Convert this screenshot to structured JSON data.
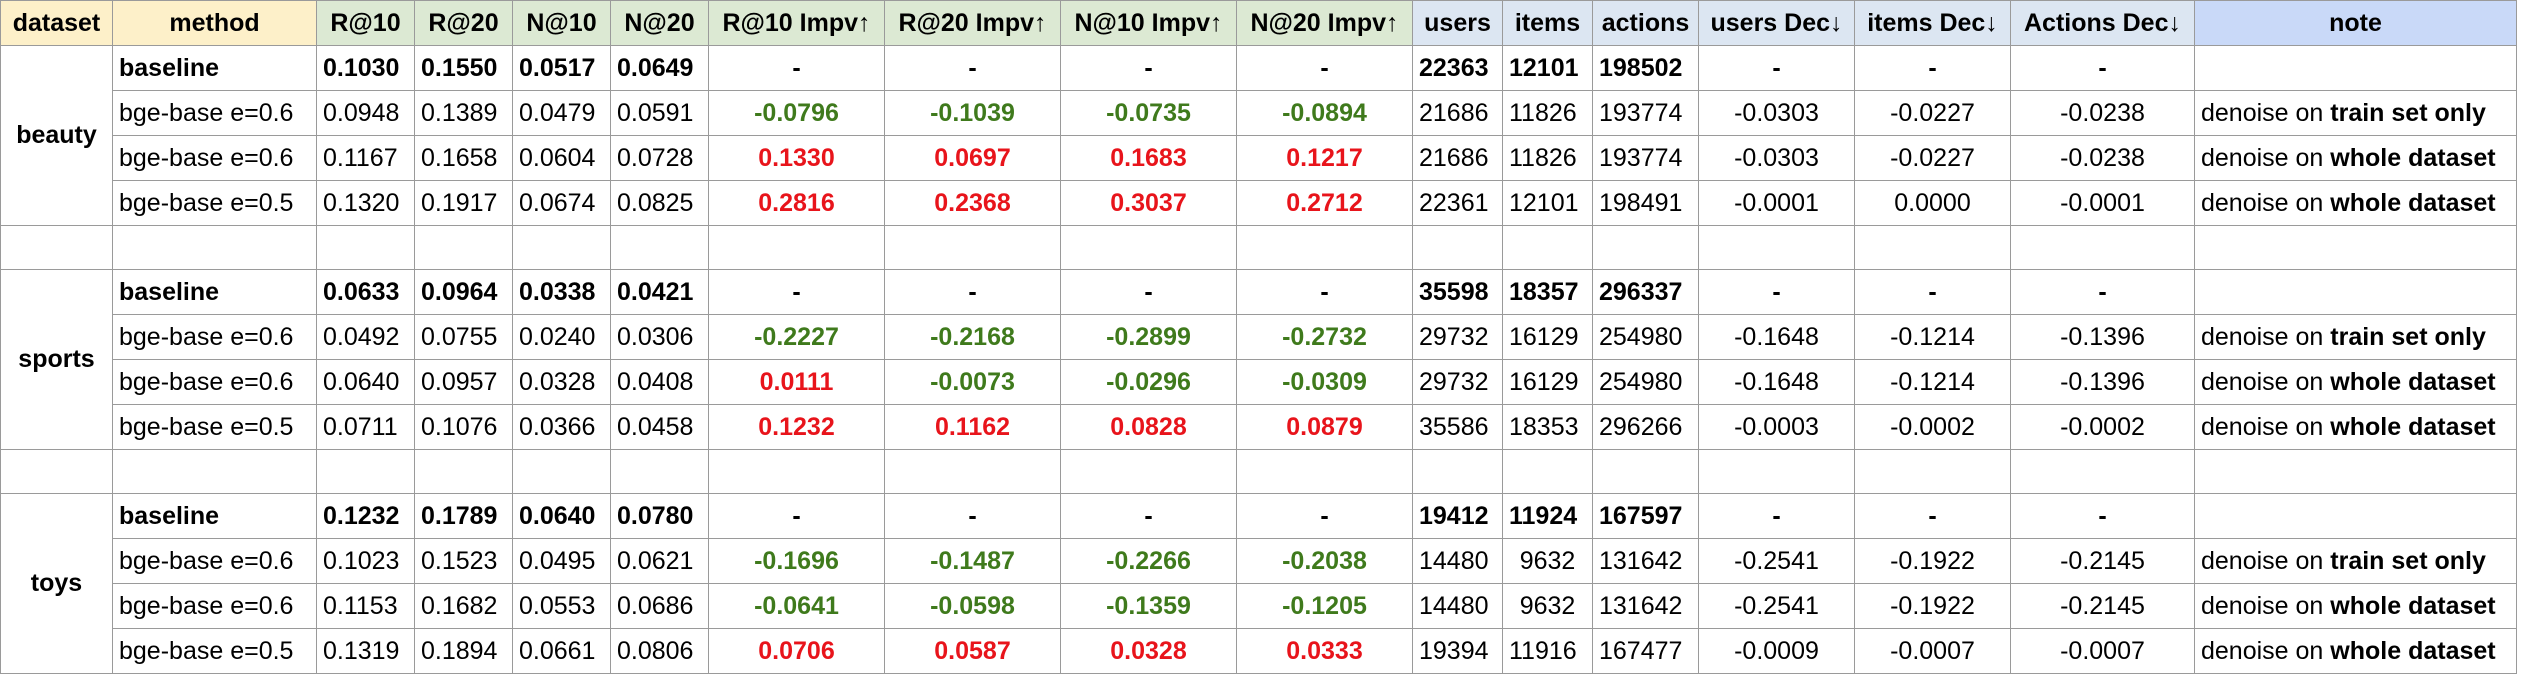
{
  "columns": [
    "dataset",
    "method",
    "R@10",
    "R@20",
    "N@10",
    "N@20",
    "R@10 Impv↑",
    "R@20 Impv↑",
    "N@10 Impv↑",
    "N@20 Impv↑",
    "users",
    "items",
    "actions",
    "users Dec↓",
    "items Dec↓",
    "Actions Dec↓",
    "note"
  ],
  "groups": [
    {
      "name": "beauty",
      "rows": [
        {
          "method": "baseline",
          "r10": "0.1030",
          "r20": "0.1550",
          "n10": "0.0517",
          "n20": "0.0649",
          "r10i": "-",
          "r20i": "-",
          "n10i": "-",
          "n20i": "-",
          "users": "22363",
          "items": "12101",
          "actions": "198502",
          "ud": "-",
          "id": "-",
          "ad": "-",
          "note_pre": "",
          "note_bold": ""
        },
        {
          "method": "bge-base e=0.6",
          "r10": "0.0948",
          "r20": "0.1389",
          "n10": "0.0479",
          "n20": "0.0591",
          "r10i": "-0.0796",
          "r20i": "-0.1039",
          "n10i": "-0.0735",
          "n20i": "-0.0894",
          "users": "21686",
          "items": "11826",
          "actions": "193774",
          "ud": "-0.0303",
          "id": "-0.0227",
          "ad": "-0.0238",
          "note_pre": "denoise on ",
          "note_bold": "train set only"
        },
        {
          "method": "bge-base e=0.6",
          "r10": "0.1167",
          "r20": "0.1658",
          "n10": "0.0604",
          "n20": "0.0728",
          "r10i": "0.1330",
          "r20i": "0.0697",
          "n10i": "0.1683",
          "n20i": "0.1217",
          "users": "21686",
          "items": "11826",
          "actions": "193774",
          "ud": "-0.0303",
          "id": "-0.0227",
          "ad": "-0.0238",
          "note_pre": "denoise on ",
          "note_bold": "whole dataset"
        },
        {
          "method": "bge-base e=0.5",
          "r10": "0.1320",
          "r20": "0.1917",
          "n10": "0.0674",
          "n20": "0.0825",
          "r10i": "0.2816",
          "r20i": "0.2368",
          "n10i": "0.3037",
          "n20i": "0.2712",
          "users": "22361",
          "items": "12101",
          "actions": "198491",
          "ud": "-0.0001",
          "id": "0.0000",
          "ad": "-0.0001",
          "note_pre": "denoise on ",
          "note_bold": "whole dataset"
        }
      ]
    },
    {
      "name": "sports",
      "rows": [
        {
          "method": "baseline",
          "r10": "0.0633",
          "r20": "0.0964",
          "n10": "0.0338",
          "n20": "0.0421",
          "r10i": "-",
          "r20i": "-",
          "n10i": "-",
          "n20i": "-",
          "users": "35598",
          "items": "18357",
          "actions": "296337",
          "ud": "-",
          "id": "-",
          "ad": "-",
          "note_pre": "",
          "note_bold": ""
        },
        {
          "method": "bge-base e=0.6",
          "r10": "0.0492",
          "r20": "0.0755",
          "n10": "0.0240",
          "n20": "0.0306",
          "r10i": "-0.2227",
          "r20i": "-0.2168",
          "n10i": "-0.2899",
          "n20i": "-0.2732",
          "users": "29732",
          "items": "16129",
          "actions": "254980",
          "ud": "-0.1648",
          "id": "-0.1214",
          "ad": "-0.1396",
          "note_pre": "denoise on ",
          "note_bold": "train set only"
        },
        {
          "method": "bge-base e=0.6",
          "r10": "0.0640",
          "r20": "0.0957",
          "n10": "0.0328",
          "n20": "0.0408",
          "r10i": "0.0111",
          "r20i": "-0.0073",
          "n10i": "-0.0296",
          "n20i": "-0.0309",
          "users": "29732",
          "items": "16129",
          "actions": "254980",
          "ud": "-0.1648",
          "id": "-0.1214",
          "ad": "-0.1396",
          "note_pre": "denoise on ",
          "note_bold": "whole dataset"
        },
        {
          "method": "bge-base e=0.5",
          "r10": "0.0711",
          "r20": "0.1076",
          "n10": "0.0366",
          "n20": "0.0458",
          "r10i": "0.1232",
          "r20i": "0.1162",
          "n10i": "0.0828",
          "n20i": "0.0879",
          "users": "35586",
          "items": "18353",
          "actions": "296266",
          "ud": "-0.0003",
          "id": "-0.0002",
          "ad": "-0.0002",
          "note_pre": "denoise on ",
          "note_bold": "whole dataset"
        }
      ]
    },
    {
      "name": "toys",
      "rows": [
        {
          "method": "baseline",
          "r10": "0.1232",
          "r20": "0.1789",
          "n10": "0.0640",
          "n20": "0.0780",
          "r10i": "-",
          "r20i": "-",
          "n10i": "-",
          "n20i": "-",
          "users": "19412",
          "items": "11924",
          "actions": "167597",
          "ud": "-",
          "id": "-",
          "ad": "-",
          "note_pre": "",
          "note_bold": ""
        },
        {
          "method": "bge-base e=0.6",
          "r10": "0.1023",
          "r20": "0.1523",
          "n10": "0.0495",
          "n20": "0.0621",
          "r10i": "-0.1696",
          "r20i": "-0.1487",
          "n10i": "-0.2266",
          "n20i": "-0.2038",
          "users": "14480",
          "items": "9632",
          "actions": "131642",
          "ud": "-0.2541",
          "id": "-0.1922",
          "ad": "-0.2145",
          "note_pre": "denoise on ",
          "note_bold": "train set only"
        },
        {
          "method": "bge-base e=0.6",
          "r10": "0.1153",
          "r20": "0.1682",
          "n10": "0.0553",
          "n20": "0.0686",
          "r10i": "-0.0641",
          "r20i": "-0.0598",
          "n10i": "-0.1359",
          "n20i": "-0.1205",
          "users": "14480",
          "items": "9632",
          "actions": "131642",
          "ud": "-0.2541",
          "id": "-0.1922",
          "ad": "-0.2145",
          "note_pre": "denoise on ",
          "note_bold": "whole dataset"
        },
        {
          "method": "bge-base e=0.5",
          "r10": "0.1319",
          "r20": "0.1894",
          "n10": "0.0661",
          "n20": "0.0806",
          "r10i": "0.0706",
          "r20i": "0.0587",
          "n10i": "0.0328",
          "n20i": "0.0333",
          "users": "19394",
          "items": "11916",
          "actions": "167477",
          "ud": "-0.0009",
          "id": "-0.0007",
          "ad": "-0.0007",
          "note_pre": "denoise on ",
          "note_bold": "whole dataset"
        }
      ]
    }
  ],
  "colors": {
    "negative_improvement": "#3f7a1c",
    "positive_improvement": "#e8141b",
    "header_yellow": "#fdf0c9",
    "header_green": "#dce9d3",
    "header_blue": "#dce6f2",
    "header_note": "#c9d9f8"
  }
}
